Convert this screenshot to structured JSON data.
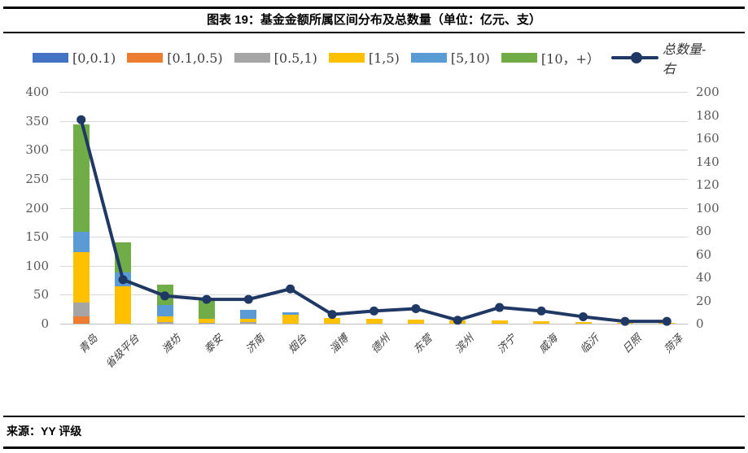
{
  "footer": {
    "source": "来源：YY 评级"
  },
  "chart_data": {
    "type": "bar",
    "subtype": "stacked-bar-with-line-combo",
    "title": "图表 19：基金金额所属区间分布及总数量（单位：亿元、支）",
    "units": "亿元、支",
    "categories": [
      "青岛",
      "省级平台",
      "潍坊",
      "泰安",
      "济南",
      "烟台",
      "淄博",
      "德州",
      "东营",
      "滨州",
      "济宁",
      "威海",
      "临沂",
      "日照",
      "菏泽"
    ],
    "series": [
      {
        "name": "[0,0.1)",
        "type": "bar",
        "color": "#4472C4",
        "values": [
          0,
          0,
          0,
          0,
          0,
          0,
          0,
          0,
          0,
          0,
          0,
          0,
          0,
          0,
          0
        ]
      },
      {
        "name": "[0.1,0.5)",
        "type": "bar",
        "color": "#ED7D31",
        "values": [
          13,
          0,
          0,
          0,
          0,
          0,
          0,
          0,
          0,
          0,
          0,
          0,
          0,
          0,
          0
        ]
      },
      {
        "name": "[0.5,1)",
        "type": "bar",
        "color": "#A5A5A5",
        "values": [
          24,
          0,
          3,
          1,
          3,
          0,
          0,
          0,
          0,
          0,
          0,
          0,
          0,
          0,
          0
        ]
      },
      {
        "name": "[1,5)",
        "type": "bar",
        "color": "#FFC000",
        "values": [
          86,
          65,
          9,
          7,
          6,
          15,
          10,
          8,
          7,
          5,
          5,
          4,
          3,
          1,
          2
        ]
      },
      {
        "name": "[5,10)",
        "type": "bar",
        "color": "#5B9BD5",
        "values": [
          35,
          23,
          20,
          0,
          15,
          5,
          0,
          0,
          0,
          0,
          0,
          0,
          0,
          0,
          0
        ]
      },
      {
        "name": "[10，+）",
        "type": "bar",
        "color": "#70AD47",
        "values": [
          186,
          52,
          36,
          34,
          0,
          0,
          0,
          0,
          0,
          0,
          0,
          0,
          0,
          0,
          0
        ]
      },
      {
        "name": "总数量-右",
        "type": "line",
        "axis": "right",
        "color": "#1F3864",
        "values": [
          176,
          38,
          24,
          21,
          21,
          30,
          8,
          11,
          13,
          3,
          14,
          11,
          6,
          2,
          2
        ]
      }
    ],
    "left_axis": {
      "min": 0,
      "max": 400,
      "step": 50,
      "ticks": [
        0,
        50,
        100,
        150,
        200,
        250,
        300,
        350,
        400
      ]
    },
    "right_axis": {
      "min": 0,
      "max": 200,
      "step": 20,
      "ticks": [
        0,
        20,
        40,
        60,
        80,
        100,
        120,
        140,
        160,
        180,
        200
      ]
    },
    "grid": true,
    "legend_position": "top",
    "bars_stacked": true
  }
}
